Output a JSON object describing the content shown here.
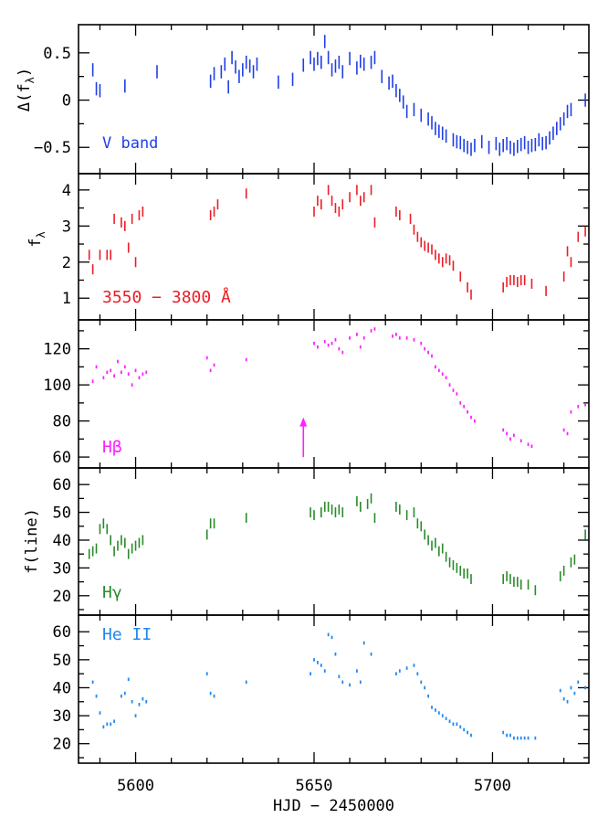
{
  "chart_data": {
    "type": "scatter",
    "xlabel": "HJD − 2450000",
    "xlim": [
      5584,
      5727
    ],
    "x_ticks": [
      5600,
      5650,
      5700
    ],
    "x_tick_labels": [
      "5600",
      "5650",
      "5700"
    ],
    "x_minor_step": 10,
    "grid": false,
    "panels": [
      {
        "id": "vband",
        "label": "V band",
        "ylabel": "Δ(f_λ)",
        "ylabel_parts": [
          "Δ(f",
          "λ",
          ")"
        ],
        "ylim": [
          -0.72,
          0.74
        ],
        "y_ticks": [
          -0.5,
          0,
          0.5
        ],
        "y_tick_labels": [
          "−0.5",
          "0",
          "0.5"
        ],
        "color": "#1f3fe6",
        "mark": "vline",
        "errorbar": 0.07,
        "x": [
          5588,
          5589,
          5590,
          5597,
          5606,
          5621,
          5622,
          5624,
          5625,
          5626,
          5627,
          5628,
          5629,
          5630,
          5631,
          5632,
          5633,
          5634,
          5640,
          5644,
          5647,
          5649,
          5650,
          5651,
          5652,
          5653,
          5654,
          5655,
          5656,
          5657,
          5658,
          5660,
          5662,
          5663,
          5664,
          5666,
          5667,
          5669,
          5671,
          5672,
          5673,
          5674,
          5675,
          5676,
          5678,
          5680,
          5682,
          5683,
          5684,
          5685,
          5686,
          5687,
          5689,
          5690,
          5691,
          5692,
          5693,
          5694,
          5695,
          5697,
          5699,
          5701,
          5702,
          5703,
          5704,
          5705,
          5706,
          5707,
          5708,
          5709,
          5710,
          5711,
          5712,
          5713,
          5714,
          5715,
          5716,
          5717,
          5718,
          5719,
          5720,
          5721,
          5722,
          5726
        ],
        "y": [
          0.32,
          0.12,
          0.1,
          0.15,
          0.3,
          0.2,
          0.28,
          0.3,
          0.38,
          0.14,
          0.45,
          0.35,
          0.25,
          0.32,
          0.4,
          0.36,
          0.3,
          0.38,
          0.19,
          0.22,
          0.37,
          0.45,
          0.38,
          0.44,
          0.4,
          0.62,
          0.45,
          0.32,
          0.36,
          0.4,
          0.3,
          0.44,
          0.34,
          0.41,
          0.38,
          0.4,
          0.45,
          0.25,
          0.18,
          0.2,
          0.1,
          0.05,
          -0.02,
          -0.12,
          -0.1,
          -0.16,
          -0.2,
          -0.24,
          -0.3,
          -0.33,
          -0.35,
          -0.38,
          -0.42,
          -0.44,
          -0.45,
          -0.48,
          -0.5,
          -0.52,
          -0.48,
          -0.44,
          -0.5,
          -0.46,
          -0.52,
          -0.48,
          -0.46,
          -0.5,
          -0.52,
          -0.49,
          -0.47,
          -0.45,
          -0.5,
          -0.48,
          -0.47,
          -0.42,
          -0.46,
          -0.45,
          -0.4,
          -0.35,
          -0.3,
          -0.25,
          -0.2,
          -0.12,
          -0.1,
          0.0
        ]
      },
      {
        "id": "cont",
        "label": "3550 − 3800 Å",
        "ylabel": "f_λ",
        "ylabel_parts": [
          "f",
          "λ",
          ""
        ],
        "ylim": [
          0.55,
          4.3
        ],
        "y_ticks": [
          1,
          2,
          3,
          4
        ],
        "y_tick_labels": [
          "1",
          "2",
          "3",
          "4"
        ],
        "color": "#ee1c25",
        "mark": "vline",
        "errorbar": 0.14,
        "x": [
          5587,
          5588,
          5590,
          5592,
          5593,
          5594,
          5596,
          5597,
          5598,
          5599,
          5600,
          5601,
          5602,
          5621,
          5622,
          5623,
          5631,
          5650,
          5651,
          5652,
          5654,
          5655,
          5656,
          5657,
          5658,
          5660,
          5662,
          5663,
          5664,
          5666,
          5667,
          5673,
          5674,
          5677,
          5678,
          5679,
          5680,
          5681,
          5682,
          5683,
          5684,
          5685,
          5686,
          5687,
          5688,
          5689,
          5691,
          5693,
          5694,
          5703,
          5704,
          5705,
          5706,
          5707,
          5708,
          5709,
          5711,
          5715,
          5720,
          5721,
          5722,
          5724,
          5726
        ],
        "y": [
          2.2,
          1.8,
          2.2,
          2.2,
          2.2,
          3.2,
          3.1,
          3.0,
          2.4,
          3.2,
          2.0,
          3.3,
          3.4,
          3.3,
          3.4,
          3.6,
          3.9,
          3.4,
          3.7,
          3.6,
          4.0,
          3.7,
          3.5,
          3.4,
          3.6,
          3.8,
          4.0,
          3.7,
          3.8,
          4.0,
          3.1,
          3.4,
          3.3,
          3.2,
          2.9,
          2.7,
          2.55,
          2.45,
          2.4,
          2.35,
          2.2,
          2.1,
          2.0,
          2.1,
          2.05,
          1.9,
          1.6,
          1.3,
          1.1,
          1.3,
          1.45,
          1.5,
          1.5,
          1.45,
          1.5,
          1.5,
          1.4,
          1.2,
          1.6,
          2.3,
          2.0,
          2.7,
          2.85
        ]
      },
      {
        "id": "hbeta",
        "label": "Hβ",
        "ylabel": "",
        "ylim": [
          57,
          133
        ],
        "y_ticks": [
          60,
          80,
          100,
          120
        ],
        "y_tick_labels": [
          "60",
          "80",
          "100",
          "120"
        ],
        "color": "#ff20ff",
        "mark": "dash",
        "x": [
          5588,
          5589,
          5591,
          5592,
          5593,
          5594,
          5595,
          5596,
          5597,
          5598,
          5599,
          5600,
          5601,
          5602,
          5603,
          5620,
          5621,
          5622,
          5631,
          5650,
          5651,
          5653,
          5654,
          5655,
          5656,
          5657,
          5658,
          5660,
          5662,
          5663,
          5664,
          5666,
          5667,
          5672,
          5673,
          5674,
          5676,
          5678,
          5680,
          5681,
          5682,
          5683,
          5684,
          5685,
          5686,
          5687,
          5688,
          5689,
          5690,
          5691,
          5692,
          5693,
          5694,
          5695,
          5703,
          5704,
          5705,
          5706,
          5708,
          5710,
          5711,
          5720,
          5721,
          5722,
          5724,
          5726
        ],
        "y": [
          102,
          110,
          104,
          107,
          108,
          105,
          113,
          107,
          110,
          106,
          100,
          108,
          104,
          106,
          107,
          115,
          108,
          111,
          114,
          123,
          121,
          124,
          122,
          123,
          125,
          120,
          118,
          126,
          128,
          121,
          126,
          130,
          131,
          127,
          128,
          126,
          126,
          125,
          123,
          120,
          118,
          116,
          110,
          108,
          106,
          104,
          100,
          97,
          95,
          90,
          88,
          85,
          82,
          80,
          75,
          73,
          70,
          72,
          69,
          67,
          66,
          75,
          73,
          85,
          88,
          89
        ],
        "annotation": {
          "type": "arrow",
          "x": 5647,
          "y_from": 60,
          "y_to": 82,
          "color": "#ff20ff"
        }
      },
      {
        "id": "hgamma",
        "label": "Hγ",
        "ylabel": "f(line)",
        "ylim": [
          15,
          64
        ],
        "y_ticks": [
          20,
          30,
          40,
          50,
          60
        ],
        "y_tick_labels": [
          "20",
          "30",
          "40",
          "50",
          "60"
        ],
        "color": "#2a8a2a",
        "mark": "vline",
        "errorbar": 1.8,
        "x": [
          5587,
          5588,
          5589,
          5590,
          5591,
          5592,
          5593,
          5594,
          5595,
          5596,
          5597,
          5598,
          5599,
          5600,
          5601,
          5602,
          5620,
          5621,
          5622,
          5631,
          5649,
          5650,
          5652,
          5653,
          5654,
          5655,
          5656,
          5657,
          5658,
          5662,
          5663,
          5665,
          5666,
          5667,
          5673,
          5674,
          5676,
          5678,
          5679,
          5680,
          5681,
          5682,
          5683,
          5684,
          5685,
          5686,
          5687,
          5688,
          5689,
          5690,
          5691,
          5692,
          5693,
          5694,
          5703,
          5704,
          5705,
          5706,
          5707,
          5708,
          5710,
          5712,
          5719,
          5720,
          5722,
          5723,
          5726
        ],
        "y": [
          35,
          36,
          37,
          44,
          46,
          44,
          40,
          36,
          38,
          40,
          39,
          35,
          37,
          38,
          39,
          40,
          42,
          46,
          46,
          48,
          50,
          49,
          50,
          52,
          52,
          51,
          50,
          51,
          50,
          54,
          52,
          53,
          55,
          48,
          52,
          51,
          49,
          50,
          46,
          45,
          42,
          40,
          38,
          39,
          36,
          37,
          34,
          32,
          31,
          30,
          29,
          28,
          28,
          26,
          26,
          27,
          26,
          25,
          25,
          24,
          24,
          22,
          27,
          29,
          32,
          33,
          42
        ]
      },
      {
        "id": "heii",
        "label": "He II",
        "ylabel": "",
        "ylim": [
          15,
          64
        ],
        "y_ticks": [
          20,
          30,
          40,
          50,
          60
        ],
        "y_tick_labels": [
          "20",
          "30",
          "40",
          "50",
          "60"
        ],
        "color": "#2288ee",
        "mark": "dash",
        "x": [
          5588,
          5589,
          5590,
          5591,
          5592,
          5593,
          5594,
          5596,
          5597,
          5598,
          5599,
          5600,
          5601,
          5602,
          5603,
          5620,
          5621,
          5622,
          5631,
          5649,
          5650,
          5651,
          5652,
          5653,
          5654,
          5655,
          5656,
          5657,
          5658,
          5660,
          5662,
          5663,
          5664,
          5666,
          5673,
          5674,
          5676,
          5678,
          5679,
          5680,
          5681,
          5682,
          5683,
          5684,
          5685,
          5686,
          5687,
          5688,
          5689,
          5690,
          5691,
          5692,
          5693,
          5694,
          5703,
          5704,
          5705,
          5706,
          5707,
          5708,
          5709,
          5710,
          5712,
          5719,
          5720,
          5721,
          5722,
          5723,
          5724,
          5726
        ],
        "y": [
          42,
          37,
          31,
          26,
          27,
          27,
          28,
          37,
          38,
          43,
          35,
          30,
          34,
          36,
          35,
          45,
          38,
          37,
          42,
          45,
          50,
          49,
          48,
          46,
          59,
          58,
          52,
          44,
          42,
          41,
          46,
          42,
          56,
          52,
          45,
          46,
          47,
          48,
          45,
          42,
          40,
          37,
          33,
          32,
          31,
          30,
          29,
          28,
          27,
          27,
          26,
          25,
          24,
          23,
          24,
          23,
          23,
          22,
          22,
          22,
          22,
          22,
          22,
          39,
          36,
          35,
          40,
          38,
          42,
          40
        ]
      }
    ]
  }
}
